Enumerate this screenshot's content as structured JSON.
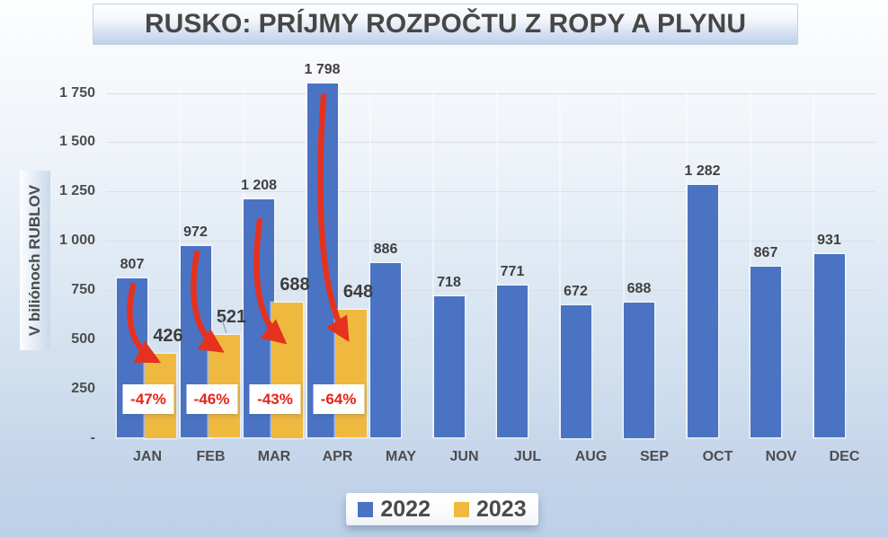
{
  "title": "RUSKO: PRÍJMY ROZPOČTU Z ROPY A PLYNU",
  "y_axis": {
    "title": "V biliónoch RUBLOV",
    "ticks": [
      "-",
      "250",
      "500",
      "750",
      "1 000",
      "1 250",
      "1 500",
      "1 750"
    ]
  },
  "colors": {
    "series_2022": "#4B73C4",
    "series_2023": "#EFB93F",
    "arrow_red": "#E5321F",
    "pct_text_red": "#E5231B",
    "label_gray": "#404040",
    "gridline": "#D6DCE3",
    "background_top": "#FDFEFE",
    "background_bottom": "#BCD0E7"
  },
  "legend": {
    "position": "bottom",
    "entries": [
      "2022",
      "2023"
    ]
  },
  "chart_data": {
    "type": "bar",
    "title": "RUSKO: PRÍJMY ROZPOČTU Z ROPY A PLYNU",
    "xlabel": "",
    "ylabel": "V biliónoch RUBLOV",
    "ylim": [
      0,
      1750
    ],
    "grid": true,
    "legend_position": "bottom",
    "categories": [
      "JAN",
      "FEB",
      "MAR",
      "APR",
      "MAY",
      "JUN",
      "JUL",
      "AUG",
      "SEP",
      "OCT",
      "NOV",
      "DEC"
    ],
    "series": [
      {
        "name": "2022",
        "color": "#4B73C4",
        "values": [
          807,
          972,
          1208,
          1798,
          886,
          718,
          771,
          672,
          688,
          1282,
          867,
          931
        ],
        "labels": [
          "807",
          "972",
          "1 208",
          "1 798",
          "886",
          "718",
          "771",
          "672",
          "688",
          "1 282",
          "867",
          "931"
        ]
      },
      {
        "name": "2023",
        "color": "#EFB93F",
        "values": [
          426,
          521,
          688,
          648,
          null,
          null,
          null,
          null,
          null,
          null,
          null,
          null
        ],
        "labels": [
          "426",
          "521",
          "688",
          "648",
          "",
          "",
          "",
          "",
          "",
          "",
          "",
          ""
        ]
      }
    ],
    "annotations": {
      "pct_change": [
        "-47%",
        "-46%",
        "-43%",
        "-64%"
      ],
      "pct_change_months": [
        "JAN",
        "FEB",
        "MAR",
        "APR"
      ]
    }
  }
}
